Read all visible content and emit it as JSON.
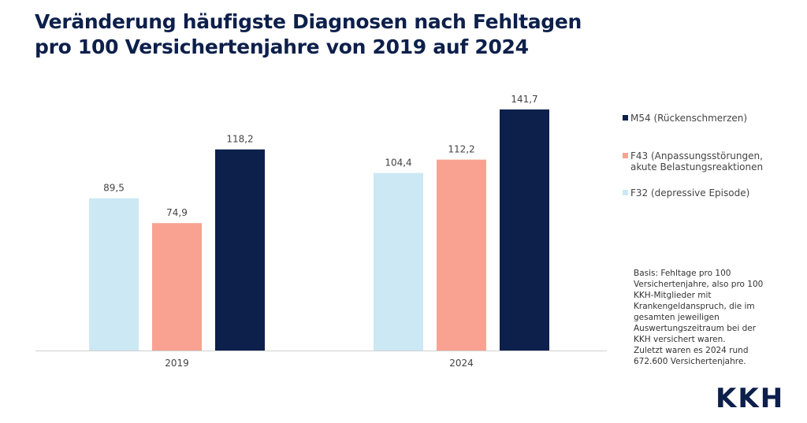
{
  "chart_data": {
    "type": "bar",
    "title": "Veränderung häufigste Diagnosen nach Fehltagen pro 100 Versichertenjahre von 2019 auf 2024",
    "title_lines": [
      "Veränderung häufigste Diagnosen nach Fehltagen",
      "pro 100 Versichertenjahre von 2019 auf 2024"
    ],
    "categories": [
      "2019",
      "2024"
    ],
    "series": [
      {
        "name": "F32 (depressive Episode)",
        "color": "#cce8f4",
        "values": [
          89.5,
          104.4
        ],
        "labels": [
          "89,5",
          "104,4"
        ]
      },
      {
        "name": "F43 (Anpassungsstörungen, akute Belastungsreaktionen",
        "name_lines": [
          "F43 (Anpassungsstörungen,",
          "akute Belastungsreaktionen"
        ],
        "color": "#f9a292",
        "values": [
          74.9,
          112.2
        ],
        "labels": [
          "74,9",
          "112,2"
        ]
      },
      {
        "name": "M54 (Rückenschmerzen)",
        "color": "#0d1f4b",
        "values": [
          118.2,
          141.7
        ],
        "labels": [
          "118,2",
          "141,7"
        ]
      }
    ],
    "legend_order": [
      2,
      1,
      0
    ],
    "legend_placement": "right",
    "ylim": [
      0,
      160
    ],
    "grid": false,
    "xlabel": "",
    "ylabel": ""
  },
  "note_lines": [
    "Basis: Fehltage pro 100",
    "Versichertenjahre, also pro 100",
    "KKH-Mitglieder mit",
    "Krankengeldanspruch, die im",
    "gesamten jeweiligen",
    "Auswertungszeitraum bei der",
    "KKH versichert waren.",
    "Zuletzt waren es 2024 rund",
    "672.600 Versichertenjahre."
  ],
  "logo": "KKH"
}
